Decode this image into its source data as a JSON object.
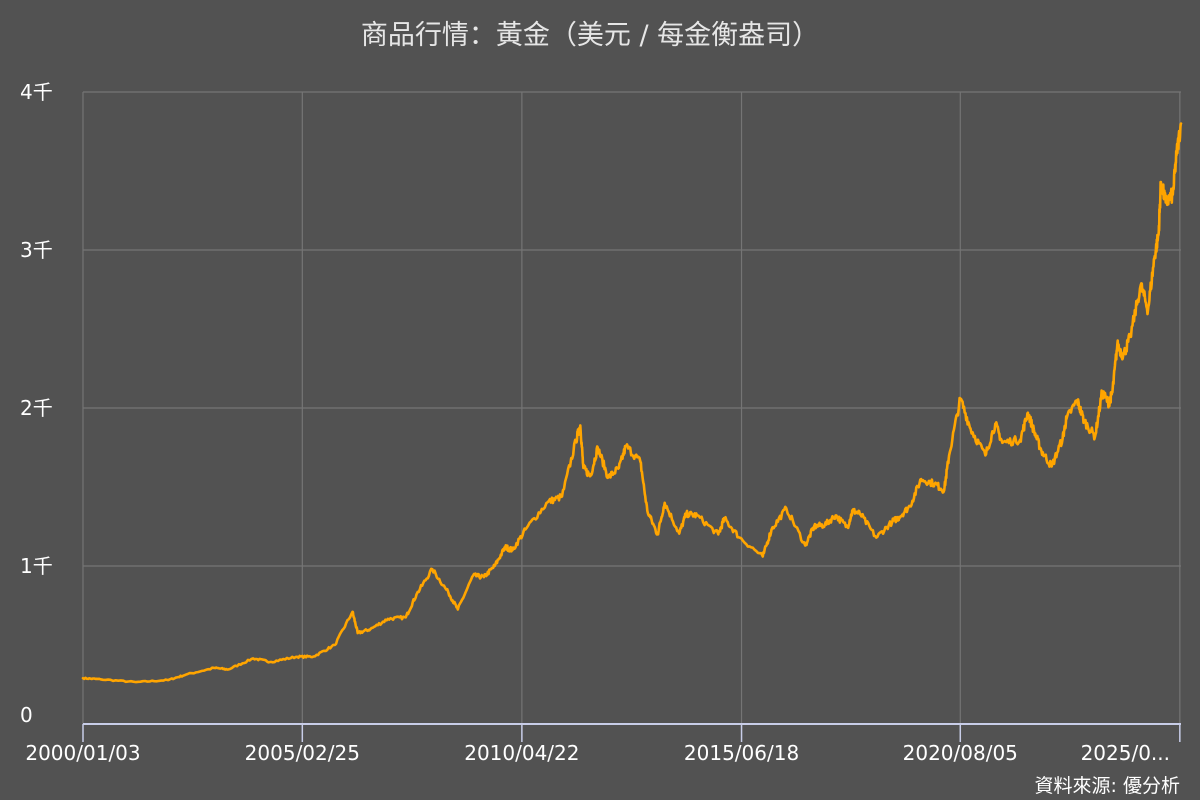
{
  "chart_data": {
    "type": "line",
    "title": "商品行情：黃金（美元 / 每金衡盎司）",
    "source": "資料來源: 優分析",
    "line_color": "#ffa500",
    "background_color": "#525252",
    "grid": true,
    "xlabel": "",
    "ylabel": "",
    "ylim": [
      0,
      4000
    ],
    "y_ticks": [
      {
        "value": 0,
        "label": "0"
      },
      {
        "value": 1000,
        "label": "1千"
      },
      {
        "value": 2000,
        "label": "2千"
      },
      {
        "value": 3000,
        "label": "3千"
      },
      {
        "value": 4000,
        "label": "4千"
      }
    ],
    "xlim": [
      "2000-01-03",
      "2025-10-10"
    ],
    "x_ticks": [
      {
        "value": "2000-01-03",
        "label": "2000/01/03"
      },
      {
        "value": "2005-02-25",
        "label": "2005/02/25"
      },
      {
        "value": "2010-04-22",
        "label": "2010/04/22"
      },
      {
        "value": "2015-06-18",
        "label": "2015/06/18"
      },
      {
        "value": "2020-08-05",
        "label": "2020/08/05"
      },
      {
        "value": "2025-09-30",
        "label": "2025/0..."
      }
    ],
    "series": [
      {
        "name": "",
        "x": [
          "2000-01-03",
          "2000-06-01",
          "2001-04-01",
          "2002-01-01",
          "2002-06-01",
          "2003-02-01",
          "2003-06-01",
          "2004-01-01",
          "2004-06-01",
          "2005-01-01",
          "2005-06-01",
          "2005-12-01",
          "2006-05-01",
          "2006-06-15",
          "2006-10-01",
          "2007-03-01",
          "2007-08-01",
          "2007-11-01",
          "2008-03-15",
          "2008-08-01",
          "2008-10-20",
          "2009-03-01",
          "2009-06-01",
          "2009-09-01",
          "2009-12-01",
          "2010-02-01",
          "2010-06-01",
          "2010-12-01",
          "2011-04-01",
          "2011-08-01",
          "2011-09-05",
          "2011-10-01",
          "2011-12-01",
          "2012-02-01",
          "2012-05-01",
          "2012-08-01",
          "2012-10-01",
          "2013-02-01",
          "2013-04-01",
          "2013-06-28",
          "2013-08-28",
          "2013-12-31",
          "2014-03-01",
          "2014-06-01",
          "2014-12-01",
          "2015-01-22",
          "2015-06-01",
          "2015-12-17",
          "2016-03-01",
          "2016-07-06",
          "2016-12-15",
          "2017-03-01",
          "2017-06-01",
          "2017-09-01",
          "2017-12-12",
          "2018-01-25",
          "2018-04-01",
          "2018-08-16",
          "2018-12-31",
          "2019-03-01",
          "2019-06-01",
          "2019-09-04",
          "2019-12-31",
          "2020-03-20",
          "2020-05-01",
          "2020-08-06",
          "2020-11-01",
          "2021-03-08",
          "2021-06-01",
          "2021-08-01",
          "2022-01-01",
          "2022-03-08",
          "2022-05-01",
          "2022-07-01",
          "2022-09-28",
          "2022-12-31",
          "2023-02-01",
          "2023-05-04",
          "2023-07-01",
          "2023-10-05",
          "2023-12-04",
          "2024-01-31",
          "2024-03-01",
          "2024-04-12",
          "2024-06-01",
          "2024-08-01",
          "2024-10-30",
          "2024-12-31",
          "2025-02-24",
          "2025-04-01",
          "2025-04-21",
          "2025-06-01",
          "2025-08-01",
          "2025-09-01",
          "2025-10-10"
        ],
        "y": [
          290,
          283,
          265,
          278,
          312,
          355,
          345,
          415,
          393,
          425,
          427,
          500,
          710,
          575,
          600,
          665,
          675,
          820,
          980,
          830,
          725,
          940,
          930,
          1000,
          1120,
          1100,
          1240,
          1405,
          1440,
          1800,
          1890,
          1620,
          1570,
          1750,
          1560,
          1620,
          1760,
          1660,
          1350,
          1200,
          1400,
          1205,
          1330,
          1320,
          1200,
          1300,
          1180,
          1060,
          1230,
          1365,
          1130,
          1250,
          1260,
          1320,
          1245,
          1350,
          1330,
          1180,
          1280,
          1310,
          1380,
          1550,
          1520,
          1480,
          1700,
          2060,
          1870,
          1700,
          1900,
          1780,
          1800,
          1970,
          1850,
          1730,
          1630,
          1810,
          1930,
          2050,
          1920,
          1820,
          2100,
          2030,
          2100,
          2400,
          2330,
          2450,
          2780,
          2620,
          2950,
          3100,
          3430,
          3300,
          3350,
          3600,
          3800
        ]
      }
    ]
  }
}
